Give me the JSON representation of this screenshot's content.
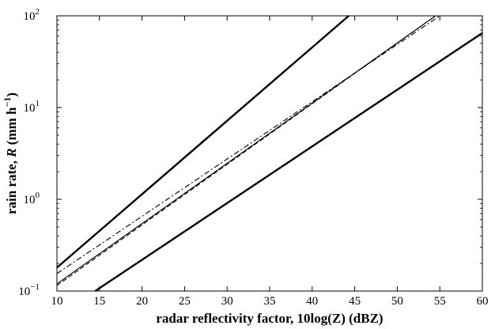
{
  "chart_data": {
    "type": "line",
    "xlabel": "radar reflectivity factor, 10log(Z) (dBZ)",
    "ylabel": {
      "prefix": "rain rate, ",
      "italic": "R",
      "units": " (mm h",
      "exponent": "−1",
      "close": ")"
    },
    "xlim": [
      10,
      60
    ],
    "ylim": [
      0.1,
      100
    ],
    "yscale": "log",
    "grid": false,
    "legend": "none",
    "x_ticks": [
      "10",
      "15",
      "20",
      "25",
      "30",
      "35",
      "40",
      "45",
      "50",
      "55",
      "60"
    ],
    "y_ticks": [
      {
        "base": "10",
        "exp": "−1"
      },
      {
        "base": "10",
        "exp": "0"
      },
      {
        "base": "10",
        "exp": "1"
      },
      {
        "base": "10",
        "exp": "2"
      }
    ],
    "series": [
      {
        "style": "solid-thick",
        "x": [
          10,
          44.3
        ],
        "y": [
          0.18,
          100
        ]
      },
      {
        "style": "solid-thin",
        "x": [
          10,
          54.5
        ],
        "y": [
          0.12,
          100
        ]
      },
      {
        "style": "dashed",
        "x": [
          10,
          54.5
        ],
        "y": [
          0.115,
          100
        ]
      },
      {
        "style": "dashdot",
        "x": [
          10,
          55
        ],
        "y": [
          0.155,
          100
        ]
      },
      {
        "style": "solid-thick",
        "x": [
          14.5,
          60
        ],
        "y": [
          0.1,
          65
        ]
      }
    ],
    "colors": {
      "line": "#000000",
      "axes": "#000000",
      "background": "#ffffff"
    }
  }
}
